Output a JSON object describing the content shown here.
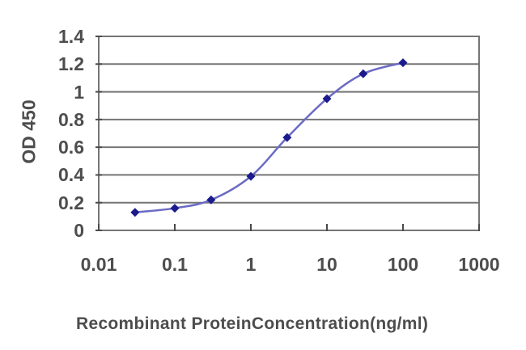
{
  "chart_data": {
    "type": "line",
    "xlabel": "Recombinant ProteinConcentration(ng/ml)",
    "ylabel": "OD 450",
    "x_scale": "log",
    "xlim": [
      0.01,
      1000
    ],
    "ylim": [
      0,
      1.4
    ],
    "x_tick_values": [
      0.01,
      0.1,
      1,
      10,
      100,
      1000
    ],
    "x_tick_labels": [
      "0.01",
      "0.1",
      "1",
      "10",
      "100",
      "1000"
    ],
    "y_tick_values": [
      0,
      0.2,
      0.4,
      0.6,
      0.8,
      1,
      1.2,
      1.4
    ],
    "y_tick_labels": [
      "0",
      "0.2",
      "0.4",
      "0.6",
      "0.8",
      "1",
      "1.2",
      "1.4"
    ],
    "grid": "horizontal-only",
    "legend": "none",
    "series": [
      {
        "marker": "diamond",
        "x": [
          0.03,
          0.1,
          0.3,
          1,
          3,
          10,
          30,
          100
        ],
        "y": [
          0.13,
          0.16,
          0.22,
          0.39,
          0.67,
          0.95,
          1.13,
          1.21
        ]
      }
    ],
    "colors": {
      "line": "#6b6bc4",
      "marker": "#1b1b8e",
      "grid": "#757575",
      "border": "#757575",
      "tick_mark": "#4a4a4a",
      "text": "#4d4d4d",
      "background": "#ffffff"
    }
  }
}
